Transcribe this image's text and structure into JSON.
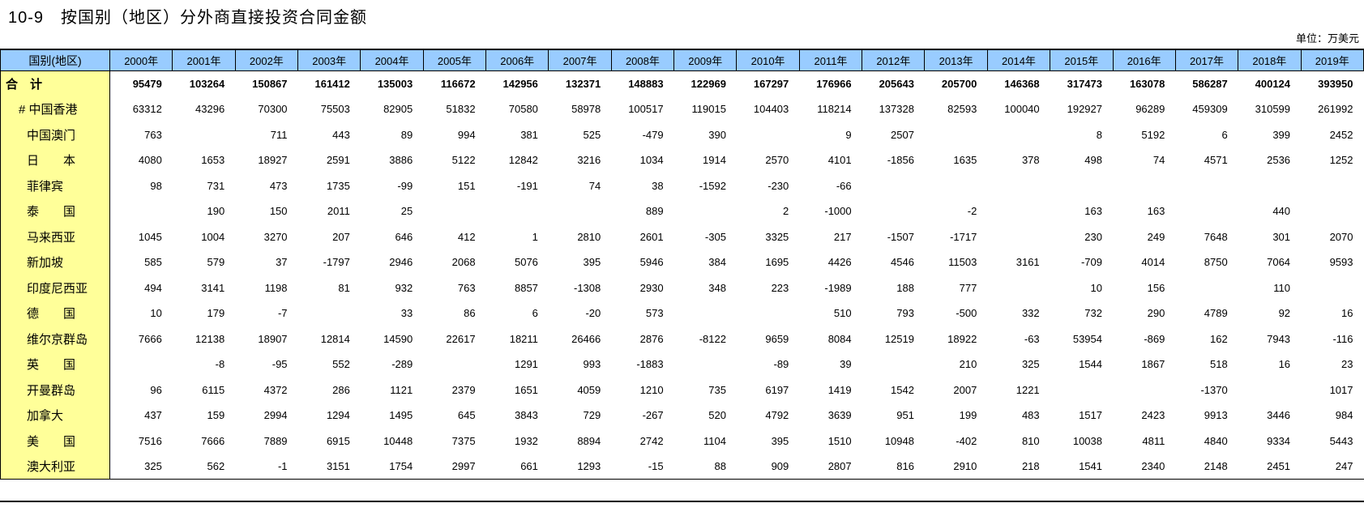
{
  "title": "10-9　按国别（地区）分外商直接投资合同金额",
  "unit_label": "单位：万美元",
  "colors": {
    "header_bg": "#99CCFF",
    "label_bg": "#FFFF99",
    "border": "#000000"
  },
  "table": {
    "corner_header": "国别(地区)",
    "year_headers": [
      "2000年",
      "2001年",
      "2002年",
      "2003年",
      "2004年",
      "2005年",
      "2006年",
      "2007年",
      "2008年",
      "2009年",
      "2010年",
      "2011年",
      "2012年",
      "2013年",
      "2014年",
      "2015年",
      "2016年",
      "2017年",
      "2018年",
      "2019年"
    ],
    "rows": [
      {
        "label": "合　计",
        "bold": true,
        "values": [
          "95479",
          "103264",
          "150867",
          "161412",
          "135003",
          "116672",
          "142956",
          "132371",
          "148883",
          "122969",
          "167297",
          "176966",
          "205643",
          "205700",
          "146368",
          "317473",
          "163078",
          "586287",
          "400124",
          "393950"
        ]
      },
      {
        "label": "# 中国香港",
        "bold": false,
        "values": [
          "63312",
          "43296",
          "70300",
          "75503",
          "82905",
          "51832",
          "70580",
          "58978",
          "100517",
          "119015",
          "104403",
          "118214",
          "137328",
          "82593",
          "100040",
          "192927",
          "96289",
          "459309",
          "310599",
          "261992"
        ]
      },
      {
        "label": "中国澳门",
        "bold": false,
        "values": [
          "763",
          "",
          "711",
          "443",
          "89",
          "994",
          "381",
          "525",
          "-479",
          "390",
          "",
          "9",
          "2507",
          "",
          "",
          "8",
          "5192",
          "6",
          "399",
          "2452"
        ]
      },
      {
        "label": "日　　本",
        "bold": false,
        "values": [
          "4080",
          "1653",
          "18927",
          "2591",
          "3886",
          "5122",
          "12842",
          "3216",
          "1034",
          "1914",
          "2570",
          "4101",
          "-1856",
          "1635",
          "378",
          "498",
          "74",
          "4571",
          "2536",
          "1252"
        ]
      },
      {
        "label": "菲律宾",
        "bold": false,
        "values": [
          "98",
          "731",
          "473",
          "1735",
          "-99",
          "151",
          "-191",
          "74",
          "38",
          "-1592",
          "-230",
          "-66",
          "",
          "",
          "",
          "",
          "",
          "",
          "",
          ""
        ]
      },
      {
        "label": "泰　　国",
        "bold": false,
        "values": [
          "",
          "190",
          "150",
          "2011",
          "25",
          "",
          "",
          "",
          "889",
          "",
          "2",
          "-1000",
          "",
          "-2",
          "",
          "163",
          "163",
          "",
          "440",
          ""
        ]
      },
      {
        "label": "马来西亚",
        "bold": false,
        "values": [
          "1045",
          "1004",
          "3270",
          "207",
          "646",
          "412",
          "1",
          "2810",
          "2601",
          "-305",
          "3325",
          "217",
          "-1507",
          "-1717",
          "",
          "230",
          "249",
          "7648",
          "301",
          "2070"
        ]
      },
      {
        "label": "新加坡",
        "bold": false,
        "values": [
          "585",
          "579",
          "37",
          "-1797",
          "2946",
          "2068",
          "5076",
          "395",
          "5946",
          "384",
          "1695",
          "4426",
          "4546",
          "11503",
          "3161",
          "-709",
          "4014",
          "8750",
          "7064",
          "9593"
        ]
      },
      {
        "label": "印度尼西亚",
        "bold": false,
        "values": [
          "494",
          "3141",
          "1198",
          "81",
          "932",
          "763",
          "8857",
          "-1308",
          "2930",
          "348",
          "223",
          "-1989",
          "188",
          "777",
          "",
          "10",
          "156",
          "",
          "110",
          ""
        ]
      },
      {
        "label": "德　　国",
        "bold": false,
        "values": [
          "10",
          "179",
          "-7",
          "",
          "33",
          "86",
          "6",
          "-20",
          "573",
          "",
          "",
          "510",
          "793",
          "-500",
          "332",
          "732",
          "290",
          "4789",
          "92",
          "16"
        ]
      },
      {
        "label": "维尔京群岛",
        "bold": false,
        "values": [
          "7666",
          "12138",
          "18907",
          "12814",
          "14590",
          "22617",
          "18211",
          "26466",
          "2876",
          "-8122",
          "9659",
          "8084",
          "12519",
          "18922",
          "-63",
          "53954",
          "-869",
          "162",
          "7943",
          "-116"
        ]
      },
      {
        "label": "英　　国",
        "bold": false,
        "values": [
          "",
          "-8",
          "-95",
          "552",
          "-289",
          "",
          "1291",
          "993",
          "-1883",
          "",
          "-89",
          "39",
          "",
          "210",
          "325",
          "1544",
          "1867",
          "518",
          "16",
          "23"
        ]
      },
      {
        "label": "开曼群岛",
        "bold": false,
        "values": [
          "96",
          "6115",
          "4372",
          "286",
          "1121",
          "2379",
          "1651",
          "4059",
          "1210",
          "735",
          "6197",
          "1419",
          "1542",
          "2007",
          "1221",
          "",
          "",
          "-1370",
          "",
          "1017"
        ]
      },
      {
        "label": "加拿大",
        "bold": false,
        "values": [
          "437",
          "159",
          "2994",
          "1294",
          "1495",
          "645",
          "3843",
          "729",
          "-267",
          "520",
          "4792",
          "3639",
          "951",
          "199",
          "483",
          "1517",
          "2423",
          "9913",
          "3446",
          "984"
        ]
      },
      {
        "label": "美　　国",
        "bold": false,
        "values": [
          "7516",
          "7666",
          "7889",
          "6915",
          "10448",
          "7375",
          "1932",
          "8894",
          "2742",
          "1104",
          "395",
          "1510",
          "10948",
          "-402",
          "810",
          "10038",
          "4811",
          "4840",
          "9334",
          "5443"
        ]
      },
      {
        "label": "澳大利亚",
        "bold": false,
        "values": [
          "325",
          "562",
          "-1",
          "3151",
          "1754",
          "2997",
          "661",
          "1293",
          "-15",
          "88",
          "909",
          "2807",
          "816",
          "2910",
          "218",
          "1541",
          "2340",
          "2148",
          "2451",
          "247"
        ]
      }
    ]
  }
}
